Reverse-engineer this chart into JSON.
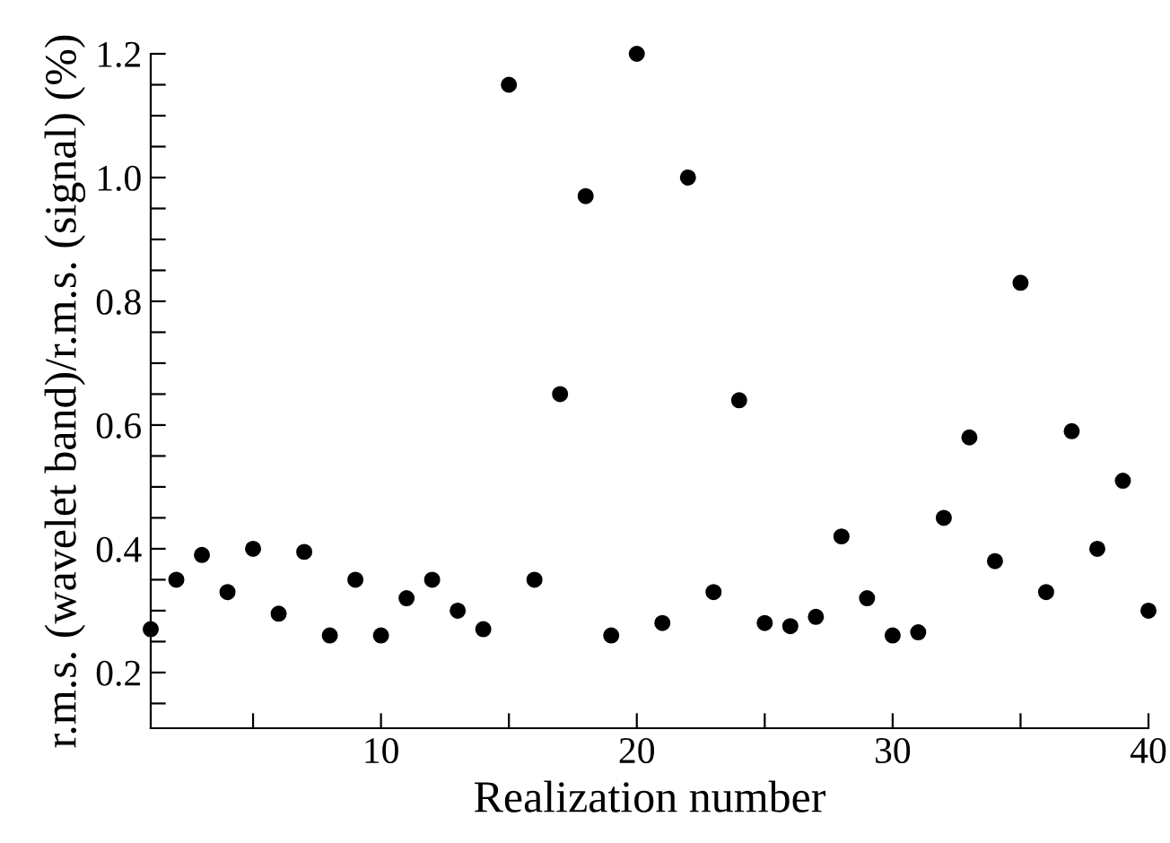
{
  "chart_data": {
    "type": "scatter",
    "xlabel": "Realization number",
    "ylabel": "r.m.s. (wavelet band)/r.m.s. (signal) (%)",
    "x": [
      1,
      2,
      3,
      4,
      5,
      6,
      7,
      8,
      9,
      10,
      11,
      12,
      13,
      14,
      15,
      16,
      17,
      18,
      19,
      20,
      21,
      22,
      23,
      24,
      25,
      26,
      27,
      28,
      29,
      30,
      31,
      32,
      33,
      34,
      35,
      36,
      37,
      38,
      39,
      40
    ],
    "series": [
      {
        "color": "#000000",
        "values": [
          0.27,
          0.35,
          0.39,
          0.33,
          0.4,
          0.295,
          0.395,
          0.26,
          0.35,
          0.26,
          0.32,
          0.35,
          0.3,
          0.27,
          1.15,
          0.35,
          0.65,
          0.97,
          0.26,
          1.2,
          0.28,
          1.0,
          0.33,
          0.64,
          0.28,
          0.275,
          0.29,
          0.42,
          0.32,
          0.26,
          0.265,
          0.45,
          0.58,
          0.38,
          0.83,
          0.33,
          0.59,
          0.4,
          0.51,
          0.3
        ]
      }
    ],
    "marker": "circle",
    "grid": false,
    "legend": false,
    "xlim": [
      1,
      40
    ],
    "ylim": [
      0.11,
      1.2
    ],
    "xticks": [
      {
        "value": 5,
        "label": null
      },
      10,
      {
        "value": 15,
        "label": null
      },
      20,
      {
        "value": 25,
        "label": null
      },
      30,
      {
        "value": 35,
        "label": null
      },
      40
    ],
    "yticks": [
      {
        "value": 0.15,
        "label": null
      },
      0.2,
      {
        "value": 0.25,
        "label": null
      },
      {
        "value": 0.3,
        "label": null
      },
      {
        "value": 0.35,
        "label": null
      },
      0.4,
      {
        "value": 0.45,
        "label": null
      },
      {
        "value": 0.5,
        "label": null
      },
      {
        "value": 0.55,
        "label": null
      },
      0.6,
      {
        "value": 0.65,
        "label": null
      },
      {
        "value": 0.7,
        "label": null
      },
      {
        "value": 0.75,
        "label": null
      },
      0.8,
      {
        "value": 0.85,
        "label": null
      },
      {
        "value": 0.9,
        "label": null
      },
      {
        "value": 0.95,
        "label": null
      },
      {
        "value": 1.0,
        "label": "1.0"
      },
      {
        "value": 1.05,
        "label": null
      },
      {
        "value": 1.1,
        "label": null
      },
      {
        "value": 1.15,
        "label": null
      },
      1.2
    ]
  }
}
